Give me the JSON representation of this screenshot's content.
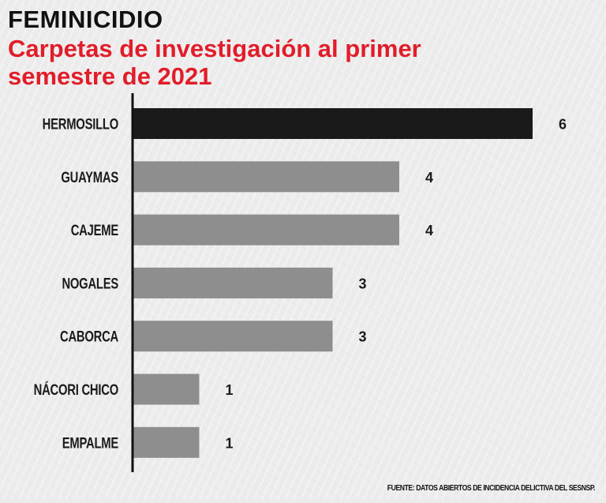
{
  "header": {
    "title": "FEMINICIDIO",
    "subtitle": "Carpetas de investigación al primer semestre de 2021"
  },
  "chart_data": {
    "type": "bar",
    "orientation": "horizontal",
    "categories": [
      "HERMOSILLO",
      "GUAYMAS",
      "CAJEME",
      "NOGALES",
      "CABORCA",
      "NÁCORI CHICO",
      "EMPALME"
    ],
    "values": [
      6,
      4,
      4,
      3,
      3,
      1,
      1
    ],
    "value_labels": [
      "6",
      "4",
      "4",
      "3",
      "3",
      "1",
      "1"
    ],
    "title": "FEMINICIDIO",
    "subtitle": "Carpetas de investigación al primer semestre de 2021",
    "xlabel": "",
    "ylabel": "",
    "xlim": [
      0,
      6
    ],
    "grid": false,
    "highlight_index": 0,
    "colors": {
      "highlight": "#1a1a1a",
      "default": "#8e8e8e",
      "axis": "#111111",
      "labels": "#1a1a1a"
    }
  },
  "footer": {
    "source": "FUENTE: DATOS ABIERTOS DE INCIDENCIA DELICTIVA DEL SESNSP."
  },
  "colors": {
    "title": "#111111",
    "subtitle": "#e11d2a",
    "background": "#ececec"
  }
}
